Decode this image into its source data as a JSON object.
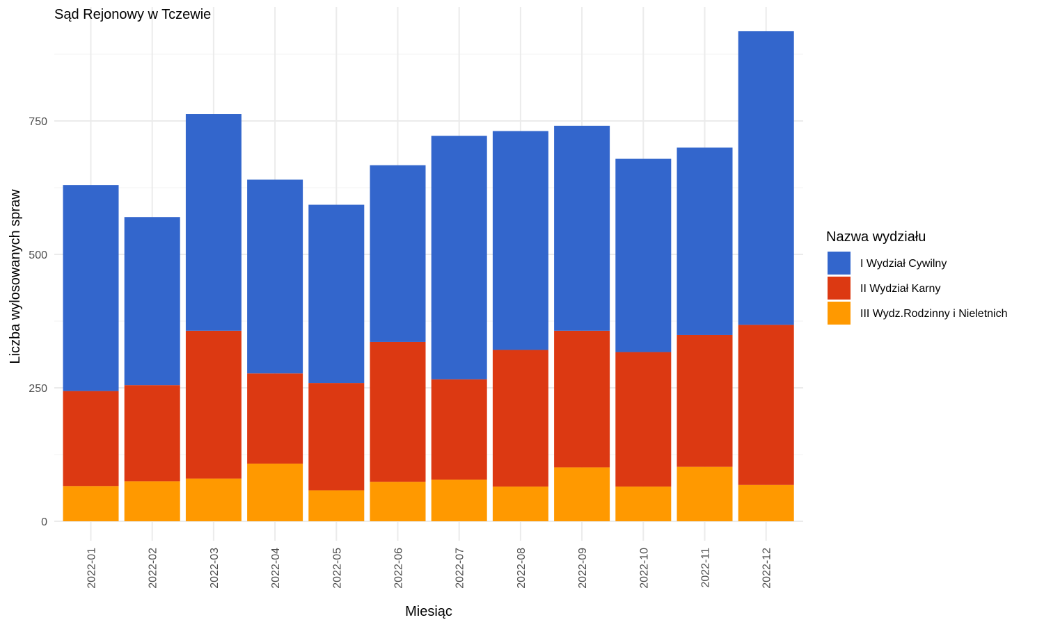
{
  "chart_data": {
    "type": "bar",
    "stacked": true,
    "title": "Sąd Rejonowy w Tczewie",
    "xlabel": "Miesiąc",
    "ylabel": "Liczba wylosowanych spraw",
    "ylim": [
      0,
      960
    ],
    "yticks": [
      0,
      250,
      500,
      750
    ],
    "grid": true,
    "legend_title": "Nazwa wydziału",
    "legend_position": "right",
    "categories": [
      "2022-01",
      "2022-02",
      "2022-03",
      "2022-04",
      "2022-05",
      "2022-06",
      "2022-07",
      "2022-08",
      "2022-09",
      "2022-10",
      "2022-11",
      "2022-12"
    ],
    "series": [
      {
        "name": "III Wydz.Rodzinny i Nieletnich",
        "color": "#FF9900",
        "values": [
          66,
          75,
          80,
          108,
          58,
          74,
          78,
          65,
          101,
          65,
          102,
          68
        ]
      },
      {
        "name": "II Wydział Karny",
        "color": "#DC3912",
        "values": [
          178,
          180,
          277,
          169,
          201,
          262,
          188,
          256,
          256,
          252,
          247,
          300
        ]
      },
      {
        "name": "I Wydział Cywilny",
        "color": "#3366CC",
        "values": [
          386,
          315,
          406,
          363,
          334,
          331,
          456,
          410,
          384,
          362,
          351,
          550
        ]
      }
    ]
  }
}
